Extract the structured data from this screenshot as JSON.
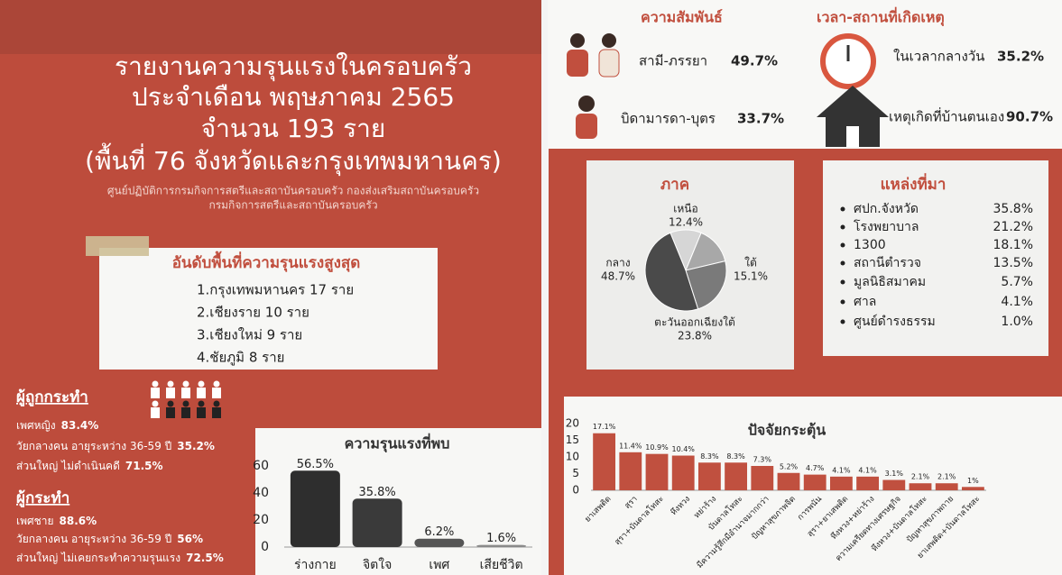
{
  "header": {
    "title_lines": [
      "รายงานความรุนแรงในครอบครัว",
      "ประจำเดือน พฤษภาคม 2565",
      "จำนวน 193 ราย",
      "(พื้นที่ 76 จังหวัดและกรุงเทพมหานคร)"
    ],
    "subtitle_lines": [
      "ศูนย์ปฏิบัติการกรมกิจการสตรีและสถาบันครอบครัว กองส่งเสริมสถาบันครอบครัว",
      "กรมกิจการสตรีและสถาบันครอบครัว"
    ]
  },
  "ranking": {
    "title": "อันดับพื้นที่ความรุนแรงสูงสุด",
    "items": [
      "1.กรุงเทพมหานคร 17 ราย",
      "2.เชียงราย 10 ราย",
      "3.เชียงใหม่  9 ราย",
      "4.ชัยภูมิ 8 ราย"
    ]
  },
  "victims": {
    "title": "ผู้ถูกกระทำ",
    "lines": [
      {
        "label": "เพศหญิง",
        "value": "83.4%"
      },
      {
        "label": "วัยกลางคน อายุระหว่าง 36-59 ปี",
        "value": "35.2%"
      },
      {
        "label": "ส่วนใหญ่ ไม่ดำเนินคดี",
        "value": "71.5%"
      }
    ]
  },
  "perpetrators": {
    "title": "ผู้กระทำ",
    "lines": [
      {
        "label": "เพศชาย",
        "value": "88.6%"
      },
      {
        "label": "วัยกลางคน อายุระหว่าง 36-59 ปี",
        "value": "56%"
      },
      {
        "label": "ส่วนใหญ่ ไม่เคยกระทำความรุนแรง",
        "value": "72.5%"
      }
    ]
  },
  "relationship": {
    "title": "ความสัมพันธ์",
    "items": [
      {
        "label": "สามี-ภรรยา",
        "value": "49.7%"
      },
      {
        "label": "บิดามารดา-บุตร",
        "value": "33.7%"
      }
    ]
  },
  "time_place": {
    "title": "เวลา-สถานที่เกิดเหตุ",
    "items": [
      {
        "label": "ในเวลากลางวัน",
        "value": "35.2%"
      },
      {
        "label": "เหตุเกิดที่บ้านตนเอง",
        "value": "90.7%"
      }
    ]
  },
  "sources": {
    "title": "แหล่งที่มา",
    "items": [
      {
        "name": "ศปก.จังหวัด",
        "value": "35.8%"
      },
      {
        "name": "โรงพยาบาล",
        "value": "21.2%"
      },
      {
        "name": "1300",
        "value": "18.1%"
      },
      {
        "name": "สถานีตำรวจ",
        "value": "13.5%"
      },
      {
        "name": "มูลนิธิสมาคม",
        "value": "5.7%"
      },
      {
        "name": "ศาล",
        "value": "4.1%"
      },
      {
        "name": "ศูนย์ดำรงธรรม",
        "value": "1.0%"
      }
    ]
  },
  "chart_data": [
    {
      "type": "bar",
      "title": "ความรุนแรงที่พบ",
      "categories": [
        "ร่างกาย",
        "จิตใจ",
        "เพศ",
        "เสียชีวิต"
      ],
      "values": [
        56.5,
        35.8,
        6.2,
        1.6
      ],
      "value_labels": [
        "56.5%",
        "35.8%",
        "6.2%",
        "1.6%"
      ],
      "colors": [
        "#2e2e2e",
        "#3a3a3a",
        "#555555",
        "#8a8a8a"
      ],
      "ylim": [
        0,
        62
      ],
      "yticks": [
        0,
        20,
        40,
        60
      ]
    },
    {
      "type": "pie",
      "title": "ภาค",
      "categories": [
        "เหนือ",
        "ใต้",
        "ตะวันออกเฉียงใต้",
        "กลาง"
      ],
      "values": [
        12.4,
        15.1,
        23.8,
        48.7
      ],
      "value_labels": [
        "12.4%",
        "15.1%",
        "23.8%",
        "48.7%"
      ],
      "colors": [
        "#d6d6d6",
        "#a8a8a8",
        "#7a7a7a",
        "#4a4a4a"
      ]
    },
    {
      "type": "bar",
      "title": "ปัจจัยกระตุ้น",
      "categories": [
        "ยาเสพติด",
        "สุรา",
        "สุรา+บันดาลโทสะ",
        "หึงหวง",
        "หย่าร้าง",
        "บันดาลโทสะ",
        "มีความรู้สึกมีอำนาจมากกว่า",
        "ปัญหาสุขภาพจิต",
        "การพนัน",
        "สุรา+ยาเสพติด",
        "หึงหวง+หย่าร้าง",
        "ความเครียดทางเศรษฐกิจ",
        "หึงหวง+บันดาลโทสะ",
        "ปัญหาสุขภาพกาย",
        "ยาเสพติด+บันดาลโทสะ"
      ],
      "values": [
        17.1,
        11.4,
        10.9,
        10.4,
        8.3,
        8.3,
        7.3,
        5.2,
        4.7,
        4.1,
        4.1,
        3.1,
        2.1,
        2.1,
        1
      ],
      "value_labels": [
        "17.1%",
        "11.4%",
        "10.9%",
        "10.4%",
        "8.3%",
        "8.3%",
        "7.3%",
        "5.2%",
        "4.7%",
        "4.1%",
        "4.1%",
        "3.1%",
        "2.1%",
        "2.1%",
        "1%"
      ],
      "colors": [
        "#c0503f"
      ],
      "ylim": [
        0,
        20
      ],
      "yticks": [
        0,
        5,
        10,
        15,
        20
      ]
    }
  ]
}
